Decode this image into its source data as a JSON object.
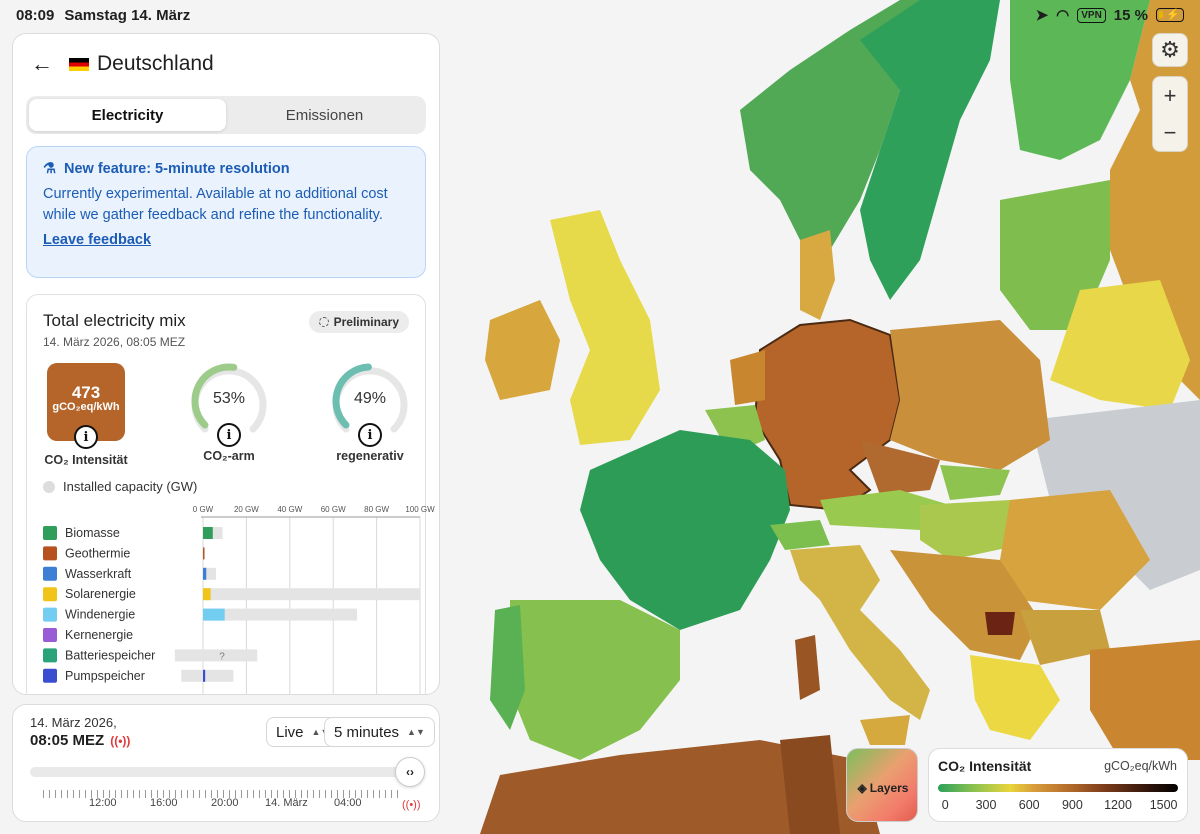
{
  "status_bar": {
    "time": "08:09",
    "date": "Samstag 14. März",
    "vpn": "VPN",
    "battery": "15 %"
  },
  "header": {
    "country": "Deutschland"
  },
  "tabs": [
    {
      "label": "Electricity",
      "active": true
    },
    {
      "label": "Emissionen",
      "active": false
    }
  ],
  "notice": {
    "title": "New feature: 5-minute resolution",
    "body": "Currently experimental. Available at no additional cost while we gather feedback and refine the functionality.",
    "link": "Leave feedback"
  },
  "mix": {
    "title": "Total electricity mix",
    "subtitle": "14. März 2026, 08:05 MEZ",
    "badge": "Preliminary",
    "co2": {
      "value": "473",
      "unit": "gCO₂eq/kWh",
      "label": "CO₂ Intensität",
      "color": "#b5652a"
    },
    "low_carbon": {
      "value": "53%",
      "fraction": 0.53,
      "label": "CO₂-arm",
      "color": "#9dcc8a"
    },
    "renewable": {
      "value": "49%",
      "fraction": 0.49,
      "label": "regenerativ",
      "color": "#6cbfb0"
    },
    "capacity_label": "Installed capacity (GW)"
  },
  "chart_data": {
    "type": "bar",
    "x_ticks": [
      "0 GW",
      "20 GW",
      "40 GW",
      "60 GW",
      "80 GW",
      "100 GW"
    ],
    "xlim": [
      0,
      100
    ],
    "categories": [
      "Biomasse",
      "Geothermie",
      "Wasserkraft",
      "Solarenergie",
      "Windenergie",
      "Kernenergie",
      "Batteriespeicher",
      "Pumpspeicher"
    ],
    "series": [
      {
        "values": [
          4.5,
          0.2,
          1.5,
          3.5,
          10,
          0,
          null,
          1
        ]
      },
      {
        "values": [
          9,
          0.5,
          6,
          100,
          71,
          0,
          null,
          null
        ]
      }
    ],
    "battery_storage_range": [
      -13,
      25
    ],
    "battery_storage_note": "?",
    "pumped_storage_range": [
      -10,
      14
    ],
    "colors": [
      "#2f9e5b",
      "#b5521f",
      "#3e7fd6",
      "#f0c419",
      "#72cdf0",
      "#9a5bd6",
      "#2aa37a",
      "#3a4fd0"
    ],
    "capacity_color": "#e4e4e4"
  },
  "timeline": {
    "date": "14. März 2026,",
    "time": "08:05 MEZ",
    "mode": "Live",
    "resolution": "5 minutes",
    "ticks": [
      "12:00",
      "16:00",
      "20:00",
      "14. März",
      "04:00"
    ]
  },
  "legend": {
    "title": "CO₂ Intensität",
    "unit": "gCO₂eq/kWh",
    "ticks": [
      "0",
      "300",
      "600",
      "900",
      "1200",
      "1500"
    ],
    "layers": "Layers"
  }
}
